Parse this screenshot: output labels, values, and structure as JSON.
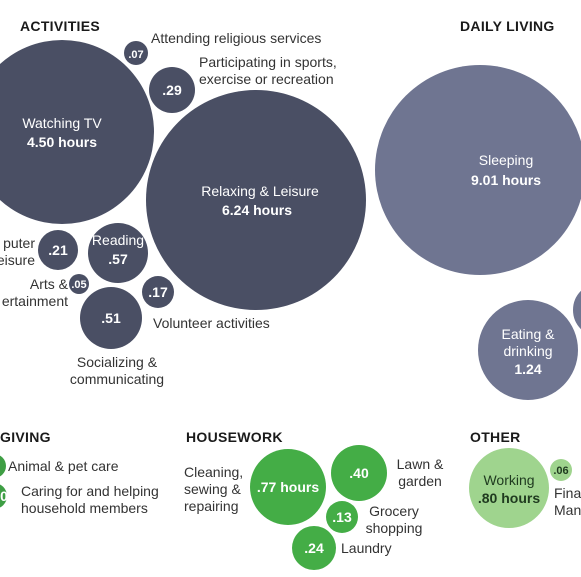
{
  "chart_data": {
    "type": "bubble",
    "colors": {
      "activities": "#4a4f64",
      "daily_living": "#6f7591",
      "caregiving": "#3e9e44",
      "housework": "#44ad46",
      "other": "#9fd48e"
    },
    "sections": [
      {
        "key": "activities",
        "title": "ACTIVITIES"
      },
      {
        "key": "daily_living",
        "title": "DAILY LIVING"
      },
      {
        "key": "caregiving",
        "title": "GIVING"
      },
      {
        "key": "housework",
        "title": "HOUSEWORK"
      },
      {
        "key": "other",
        "title": "OTHER"
      }
    ],
    "bubbles": [
      {
        "section": "activities",
        "label": "Watching TV",
        "value": 4.5,
        "value_text": "4.50 hours"
      },
      {
        "section": "activities",
        "label": "Relaxing & Leisure",
        "value": 6.24,
        "value_text": "6.24 hours"
      },
      {
        "section": "activities",
        "label": "Attending religious services",
        "value": 0.07,
        "value_text": ".07"
      },
      {
        "section": "activities",
        "label": "Participating in sports, exercise or recreation",
        "value": 0.29,
        "value_text": ".29"
      },
      {
        "section": "activities",
        "label": "Reading",
        "value": 0.57,
        "value_text": ".57"
      },
      {
        "section": "activities",
        "label": "puter eisure",
        "value": 0.21,
        "value_text": ".21"
      },
      {
        "section": "activities",
        "label": "Arts & ertainment",
        "value": 0.05,
        "value_text": ".05"
      },
      {
        "section": "activities",
        "label": "Volunteer activities",
        "value": 0.17,
        "value_text": ".17"
      },
      {
        "section": "activities",
        "label": "Socializing & communicating",
        "value": 0.51,
        "value_text": ".51"
      },
      {
        "section": "daily_living",
        "label": "Sleeping",
        "value": 9.01,
        "value_text": "9.01 hours"
      },
      {
        "section": "daily_living",
        "label": "Eating & drinking",
        "value": 1.24,
        "value_text": "1.24"
      },
      {
        "section": "caregiving",
        "label": "Animal & pet care",
        "value": null,
        "value_text": ""
      },
      {
        "section": "caregiving",
        "label": "Caring for and helping household members",
        "value": null,
        "value_text": "0"
      },
      {
        "section": "housework",
        "label": "Cleaning, sewing & repairing",
        "value": 0.77,
        "value_text": ".77 hours"
      },
      {
        "section": "housework",
        "label": "Lawn & garden",
        "value": 0.4,
        "value_text": ".40"
      },
      {
        "section": "housework",
        "label": "Grocery shopping",
        "value": 0.13,
        "value_text": ".13"
      },
      {
        "section": "housework",
        "label": "Laundry",
        "value": 0.24,
        "value_text": ".24"
      },
      {
        "section": "other",
        "label": "Working",
        "value": 0.8,
        "value_text": ".80 hours"
      },
      {
        "section": "other",
        "label": "Fina Man",
        "value": 0.06,
        "value_text": ".06"
      }
    ]
  }
}
